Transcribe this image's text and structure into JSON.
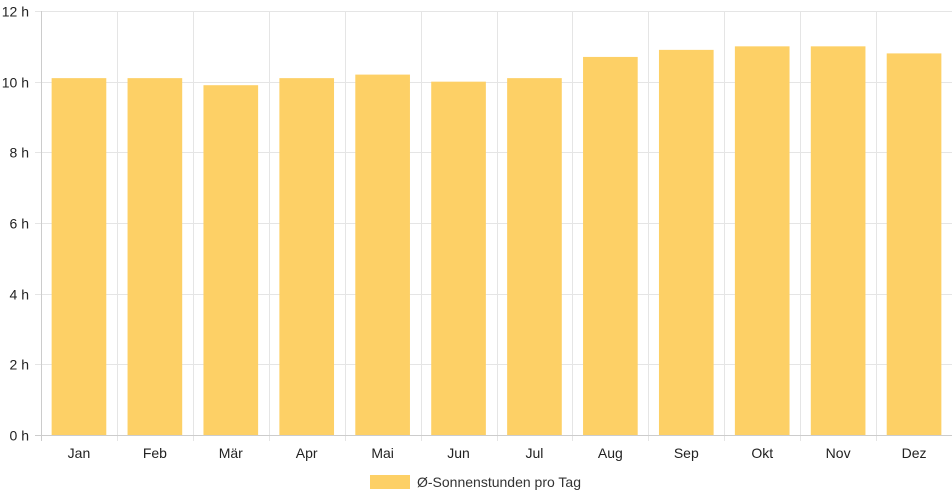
{
  "chart_data": {
    "type": "bar",
    "categories": [
      "Jan",
      "Feb",
      "Mär",
      "Apr",
      "Mai",
      "Jun",
      "Jul",
      "Aug",
      "Sep",
      "Okt",
      "Nov",
      "Dez"
    ],
    "series": [
      {
        "name": "Ø-Sonnenstunden pro Tag",
        "values": [
          10.1,
          10.1,
          9.9,
          10.1,
          10.2,
          10.0,
          10.1,
          10.7,
          10.9,
          11.0,
          11.0,
          10.8
        ],
        "color": "#fdd066"
      }
    ],
    "y_ticks": [
      0,
      2,
      4,
      6,
      8,
      10,
      12
    ],
    "y_tick_suffix": " h",
    "ylim": [
      0,
      12
    ],
    "grid": true,
    "legend_position": "bottom",
    "grid_color": "#e5e5e5",
    "axis_color": "#cccccc"
  }
}
